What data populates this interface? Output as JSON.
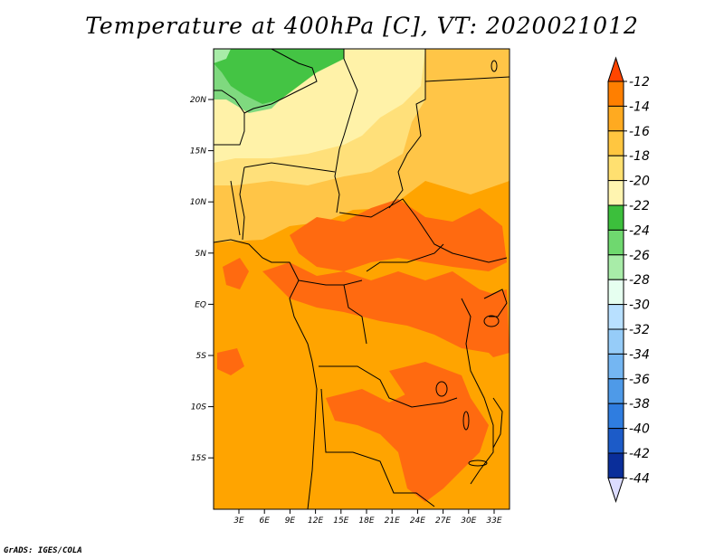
{
  "title": "Temperature at 400hPa [C], VT: 2020021012",
  "credit": "GrADS: IGES/COLA",
  "lat_labels": [
    "20N",
    "15N",
    "10N",
    "5N",
    "EQ",
    "5S",
    "10S",
    "15S"
  ],
  "lon_labels": [
    "3E",
    "6E",
    "9E",
    "12E",
    "15E",
    "18E",
    "21E",
    "24E",
    "27E",
    "30E",
    "33E"
  ],
  "colorbar": {
    "labels": [
      "-12",
      "-14",
      "-16",
      "-18",
      "-20",
      "-22",
      "-24",
      "-26",
      "-28",
      "-30",
      "-32",
      "-34",
      "-36",
      "-38",
      "-40",
      "-42",
      "-44"
    ],
    "colors": [
      "#ff4500",
      "#ff7f00",
      "#ffaa20",
      "#ffc640",
      "#ffe070",
      "#fff5b0",
      "#3cbf3c",
      "#6fd86f",
      "#a8eca8",
      "#e6fff0",
      "#b8e0ff",
      "#96ccf8",
      "#74b6f2",
      "#4e9ae8",
      "#2f7de0",
      "#1c5bc8",
      "#0a2e9a",
      "#0a0a70",
      "#dcdcff"
    ]
  },
  "map_colors": {
    "ocean_default": "#ffa400",
    "warm_patch": "#ff6a10",
    "light_yellow": "#fff2a8",
    "pale": "#ffe58a",
    "mid": "#ffc547",
    "green": "#44c444",
    "light_green": "#7fd97f"
  }
}
